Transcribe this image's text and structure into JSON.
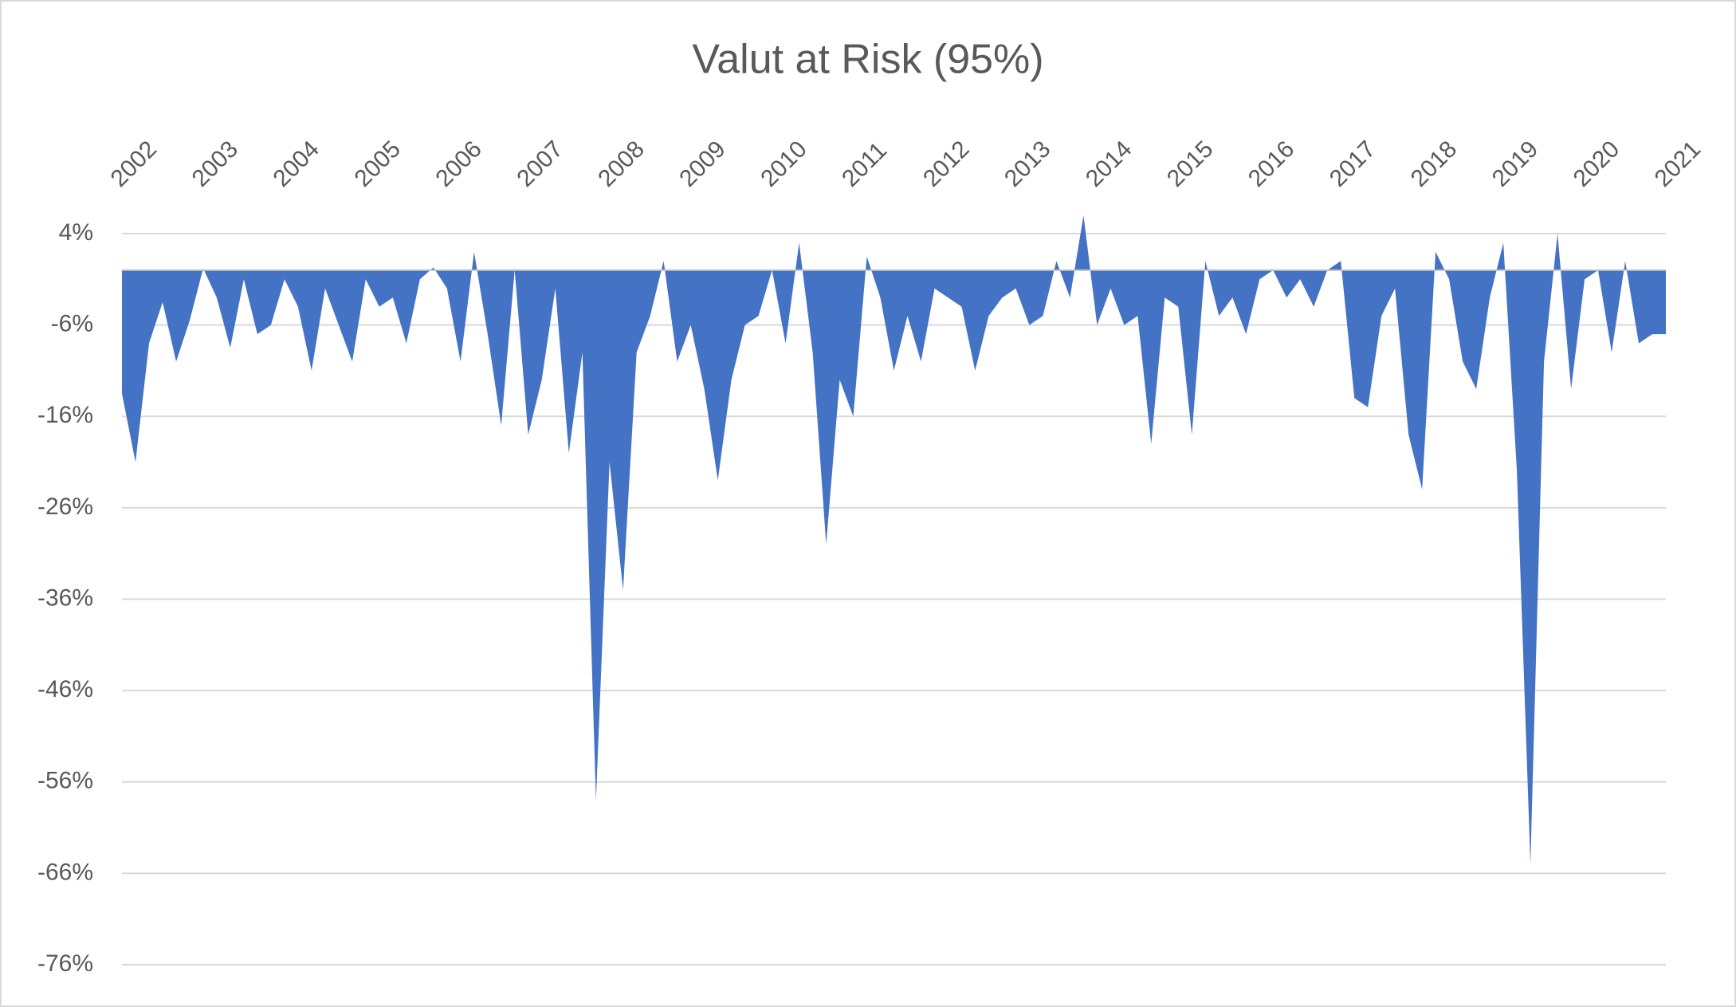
{
  "chart_data": {
    "type": "area",
    "title": "Valut at Risk (95%)",
    "categories": [
      "2002",
      null,
      null,
      null,
      null,
      null,
      "2003",
      null,
      null,
      null,
      null,
      null,
      "2004",
      null,
      null,
      null,
      null,
      null,
      "2005",
      null,
      null,
      null,
      null,
      null,
      "2006",
      null,
      null,
      null,
      null,
      null,
      "2007",
      null,
      null,
      null,
      null,
      null,
      "2008",
      null,
      null,
      null,
      null,
      null,
      "2009",
      null,
      null,
      null,
      null,
      null,
      "2010",
      null,
      null,
      null,
      null,
      null,
      "2011",
      null,
      null,
      null,
      null,
      null,
      "2012",
      null,
      null,
      null,
      null,
      null,
      "2013",
      null,
      null,
      null,
      null,
      null,
      "2014",
      null,
      null,
      null,
      null,
      null,
      "2015",
      null,
      null,
      null,
      null,
      null,
      "2016",
      null,
      null,
      null,
      null,
      null,
      "2017",
      null,
      null,
      null,
      null,
      null,
      "2018",
      null,
      null,
      null,
      null,
      null,
      "2019",
      null,
      null,
      null,
      null,
      null,
      "2020",
      null,
      null,
      null,
      null,
      null,
      "2021"
    ],
    "values": [
      -13.5,
      -21,
      -8,
      -3.5,
      -10,
      -5.5,
      0.2,
      -3,
      -8.5,
      -1,
      -7,
      -6,
      -1,
      -4,
      -11,
      -2,
      -6,
      -10,
      -1,
      -4,
      -3,
      -8,
      -1,
      0.3,
      -2,
      -10,
      2,
      -7,
      -17,
      0,
      -18,
      -12,
      -2,
      -20,
      -9,
      -58,
      -21,
      -35,
      -9,
      -5,
      1,
      -10,
      -6,
      -13,
      -23,
      -12,
      -6,
      -5,
      0,
      -8,
      3,
      -9,
      -30,
      -12,
      -16,
      1.5,
      -3,
      -11,
      -5,
      -10,
      -2,
      -3,
      -4,
      -11,
      -5,
      -3,
      -2,
      -6,
      -5,
      1,
      -3,
      6,
      -6,
      -2,
      -6,
      -5,
      -19,
      -3,
      -4,
      -18,
      1,
      -5,
      -3,
      -7,
      -1,
      0,
      -3,
      -1,
      -4,
      0,
      1,
      -14,
      -15,
      -5,
      -2,
      -18,
      -24,
      2,
      -1,
      -10,
      -13,
      -3,
      3,
      -22,
      -65,
      -10,
      4,
      -13,
      -1,
      0,
      -9,
      1,
      -8,
      -7,
      -7
    ],
    "color": "#4472c4",
    "ylim": [
      -76,
      4
    ],
    "yticks": [
      {
        "value": 4,
        "label": "4%"
      },
      {
        "value": -6,
        "label": "-6%"
      },
      {
        "value": -16,
        "label": "-16%"
      },
      {
        "value": -26,
        "label": "-26%"
      },
      {
        "value": -36,
        "label": "-36%"
      },
      {
        "value": -46,
        "label": "-46%"
      },
      {
        "value": -56,
        "label": "-56%"
      },
      {
        "value": -66,
        "label": "-66%"
      },
      {
        "value": -76,
        "label": "-76%"
      }
    ],
    "grid": true
  }
}
